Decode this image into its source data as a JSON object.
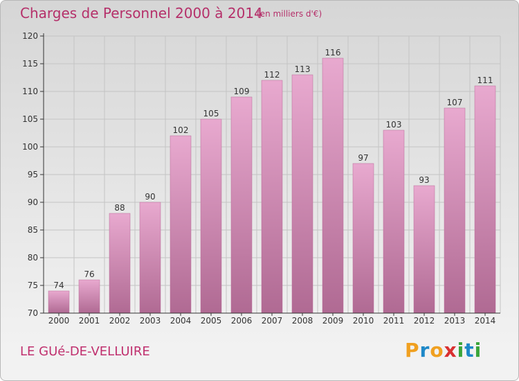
{
  "chart_data": {
    "type": "bar",
    "title": "Charges de Personnel 2000 à 2014",
    "subtitle": "(en milliers d'€)",
    "categories": [
      "2000",
      "2001",
      "2002",
      "2003",
      "2004",
      "2005",
      "2006",
      "2007",
      "2008",
      "2009",
      "2010",
      "2011",
      "2012",
      "2013",
      "2014"
    ],
    "values": [
      74,
      76,
      88,
      90,
      102,
      105,
      109,
      112,
      113,
      116,
      97,
      103,
      93,
      107,
      111
    ],
    "ylim": [
      70,
      120
    ],
    "yticks": [
      70,
      75,
      80,
      85,
      90,
      95,
      100,
      105,
      110,
      115,
      120
    ],
    "grid": true,
    "xlabel": "",
    "ylabel": ""
  },
  "footer": {
    "commune": "LE GUé-DE-VELLUIRE",
    "logo_letters": [
      "P",
      "r",
      "o",
      "x",
      "i",
      "t",
      "i"
    ]
  },
  "colors": {
    "title": "#b5306a",
    "bar_top": "#e8a9cf",
    "bar_bottom": "#b06a93",
    "logo": [
      "#f0a020",
      "#1e88c8",
      "#f0a020",
      "#d93030",
      "#3aa53a",
      "#1e88c8",
      "#3aa53a"
    ]
  }
}
